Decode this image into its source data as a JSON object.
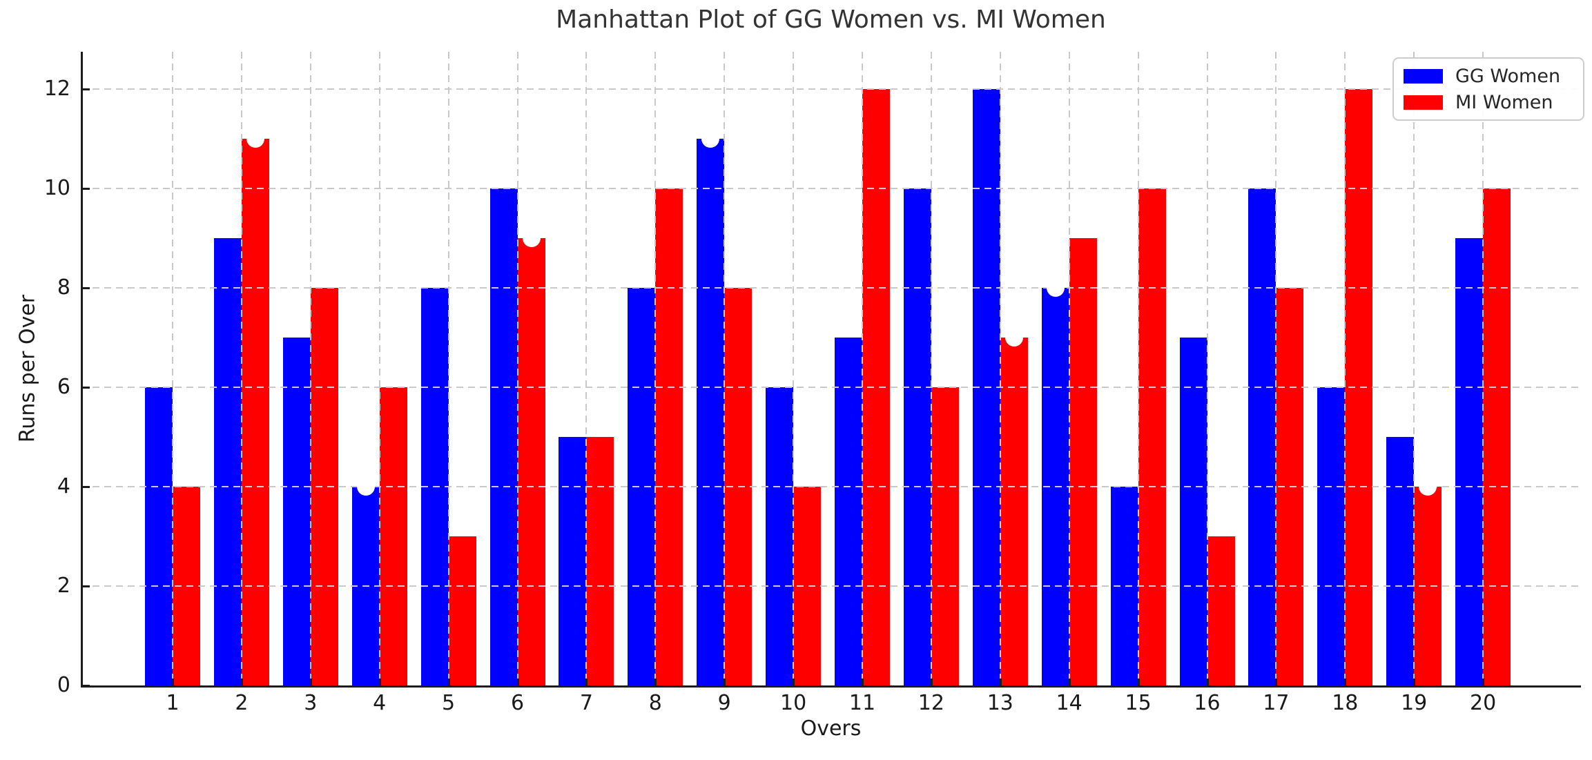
{
  "title": "Manhattan Plot of GG Women vs. MI Women",
  "axes": {
    "x_label": "Overs",
    "y_label": "Runs per Over",
    "y_tick_labels": [
      "0",
      "2",
      "4",
      "6",
      "8",
      "10",
      "12"
    ],
    "x_tick_labels": [
      "1",
      "2",
      "3",
      "4",
      "5",
      "6",
      "7",
      "8",
      "9",
      "10",
      "11",
      "12",
      "13",
      "14",
      "15",
      "16",
      "17",
      "18",
      "19",
      "20"
    ]
  },
  "legend": {
    "position": "upper right",
    "items": [
      {
        "label": "GG Women",
        "color": "#0000ff"
      },
      {
        "label": "MI Women",
        "color": "#ff0000"
      }
    ]
  },
  "chart_data": {
    "type": "bar",
    "title": "Manhattan Plot of GG Women vs. MI Women",
    "xlabel": "Overs",
    "ylabel": "Runs per Over",
    "categories": [
      1,
      2,
      3,
      4,
      5,
      6,
      7,
      8,
      9,
      10,
      11,
      12,
      13,
      14,
      15,
      16,
      17,
      18,
      19,
      20
    ],
    "series": [
      {
        "name": "GG Women",
        "color": "#0000ff",
        "values": [
          6,
          9,
          7,
          4,
          8,
          10,
          5,
          8,
          11,
          6,
          7,
          10,
          12,
          8,
          4,
          7,
          10,
          6,
          5,
          9
        ]
      },
      {
        "name": "MI Women",
        "color": "#ff0000",
        "values": [
          4,
          11,
          8,
          6,
          3,
          9,
          5,
          10,
          8,
          4,
          12,
          6,
          7,
          9,
          10,
          3,
          8,
          12,
          4,
          10
        ]
      }
    ],
    "white_dot_markers": [
      {
        "over": 2,
        "series": "MI Women",
        "value": 11
      },
      {
        "over": 4,
        "series": "GG Women",
        "value": 4
      },
      {
        "over": 6,
        "series": "MI Women",
        "value": 9
      },
      {
        "over": 9,
        "series": "GG Women",
        "value": 11
      },
      {
        "over": 13,
        "series": "MI Women",
        "value": 7
      },
      {
        "over": 14,
        "series": "GG Women",
        "value": 8
      },
      {
        "over": 19,
        "series": "MI Women",
        "value": 4
      }
    ],
    "ylim": [
      0,
      12.75
    ],
    "y_ticks": [
      0,
      2,
      4,
      6,
      8,
      10,
      12
    ],
    "grid": {
      "on": true,
      "style": "dashed",
      "color": "#c9c9c9",
      "drawn_above_bars": true
    },
    "legend_position": "upper right",
    "bar_width_fraction": 0.4,
    "background": "#ffffff"
  }
}
